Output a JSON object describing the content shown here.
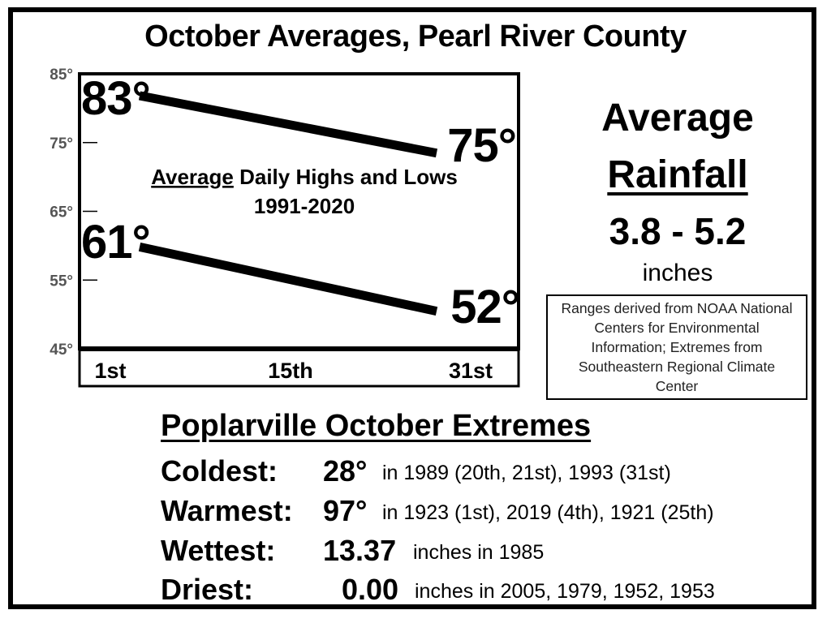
{
  "title": "October Averages, Pearl River County",
  "chart_data": {
    "type": "line",
    "title": "Average Daily Highs and Lows",
    "title_underlined_word": "Average",
    "title_rest": " Daily Highs and Lows",
    "subtitle": "1991-2020",
    "x": [
      "1st",
      "31st"
    ],
    "x_tick_labels": [
      "1st",
      "15th",
      "31st"
    ],
    "ylim": [
      45,
      85
    ],
    "y_ticks": [
      85,
      75,
      65,
      55,
      45
    ],
    "y_tick_labels": [
      "85°",
      "75°",
      "65°",
      "55°",
      "45°"
    ],
    "series": [
      {
        "values": [
          83,
          75
        ],
        "labels": [
          "83°",
          "75°"
        ]
      },
      {
        "values": [
          61,
          52
        ],
        "labels": [
          "61°",
          "52°"
        ]
      }
    ]
  },
  "rainfall": {
    "line1": "Average",
    "line2": "Rainfall",
    "value": "3.8 - 5.2",
    "units": "inches"
  },
  "source_note": "Ranges derived from NOAA National Centers for Environmental Information; Extremes from Southeastern Regional Climate Center",
  "extremes": {
    "title": "Poplarville October Extremes",
    "rows": [
      {
        "label": "Coldest:",
        "value": "28°",
        "detail": "in 1989 (20th, 21st), 1993 (31st)"
      },
      {
        "label": "Warmest:",
        "value": "97°",
        "detail": "in 1923 (1st), 2019 (4th), 1921 (25th)"
      },
      {
        "label": "Wettest:",
        "value": "13.37",
        "detail": "inches in 1985"
      },
      {
        "label": "Driest:",
        "value": "0.00",
        "detail": "inches in 2005, 1979, 1952, 1953"
      }
    ]
  }
}
